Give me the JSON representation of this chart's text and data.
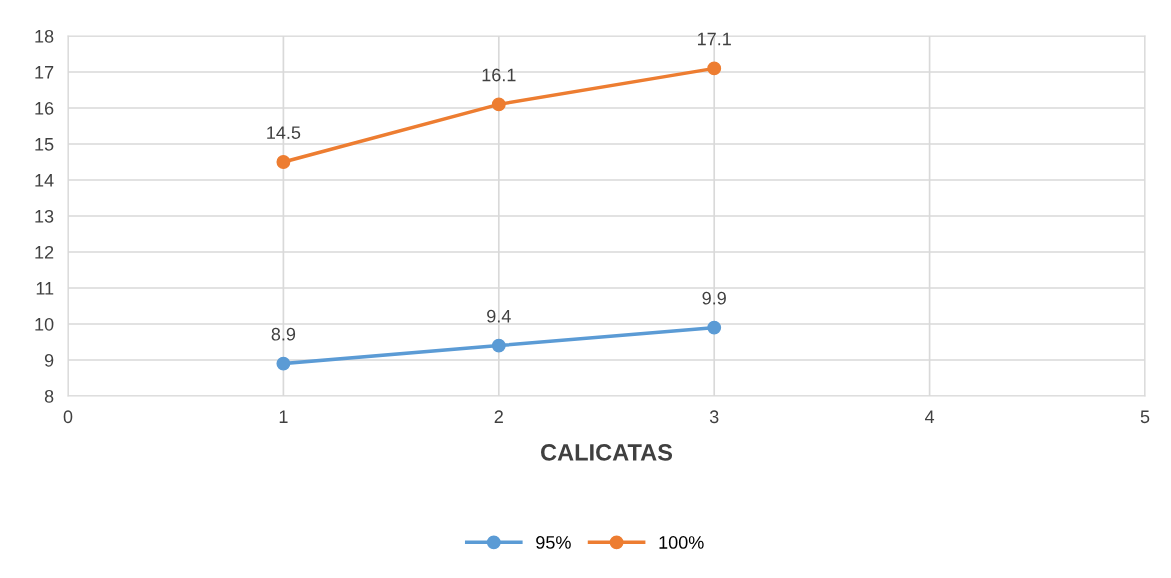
{
  "chart_data": {
    "type": "line",
    "xlabel": "CALICATAS",
    "x": [
      1,
      2,
      3
    ],
    "series": [
      {
        "name": "95%",
        "color": "#5b9bd5",
        "values": [
          8.9,
          9.4,
          9.9
        ]
      },
      {
        "name": "100%",
        "color": "#ed7d31",
        "values": [
          14.5,
          16.1,
          17.1
        ]
      }
    ],
    "xlim": [
      0,
      5
    ],
    "xticks": [
      0,
      1,
      2,
      3,
      4,
      5
    ],
    "ylim": [
      8,
      18
    ],
    "yticks": [
      8,
      9,
      10,
      11,
      12,
      13,
      14,
      15,
      16,
      17,
      18
    ],
    "grid": true,
    "legend": "bottom",
    "marker": "circle",
    "line_style": "solid",
    "data_labels": true
  }
}
